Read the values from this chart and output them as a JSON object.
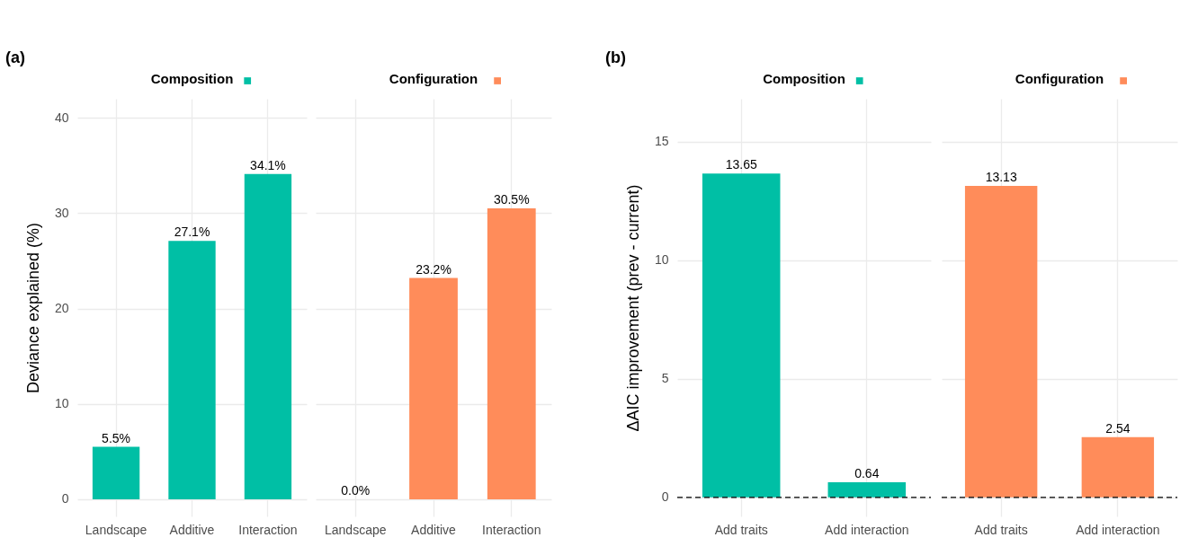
{
  "chart_data": [
    {
      "type": "bar",
      "title": "Composition",
      "annotations": [
        "(a)"
      ],
      "ylabel": "Deviance explained (%)",
      "categories": [
        "Landscape",
        "Additive",
        "Interaction"
      ],
      "series": [
        {
          "color": "#00bfa5",
          "values": [
            5.5,
            27.1,
            34.1
          ]
        }
      ],
      "value_labels": [
        "5.5%",
        "27.1%",
        "34.1%"
      ],
      "ylim": [
        -1.8,
        42
      ],
      "yticks": [
        0,
        10,
        20,
        30,
        40
      ],
      "grid": true
    },
    {
      "type": "bar",
      "title": "Configuration",
      "categories": [
        "Landscape",
        "Additive",
        "Interaction"
      ],
      "series": [
        {
          "color": "#ff8c5a",
          "values": [
            0.0,
            23.2,
            30.5
          ]
        }
      ],
      "value_labels": [
        "0.0%",
        "23.2%",
        "30.5%"
      ],
      "ylim": [
        -1.8,
        42
      ],
      "yticks": [
        0,
        10,
        20,
        30,
        40
      ],
      "grid": true,
      "tick_labels": "x"
    },
    {
      "type": "bar",
      "title": "Composition",
      "annotations": [
        "(b)"
      ],
      "ylabel": "ΔAIC improvement (prev - current)",
      "categories": [
        "Add traits",
        "Add interaction"
      ],
      "series": [
        {
          "color": "#00bfa5",
          "values": [
            13.65,
            0.64
          ]
        }
      ],
      "data_labels": true,
      "ylim": [
        -0.8,
        16.8
      ],
      "yticks": [
        0,
        5,
        10,
        15
      ],
      "grid": true,
      "ref_lines": [
        {
          "axis": "y",
          "value": 0,
          "color": "#000000",
          "line_style": "dashed"
        }
      ]
    },
    {
      "type": "bar",
      "title": "Configuration",
      "categories": [
        "Add traits",
        "Add interaction"
      ],
      "series": [
        {
          "color": "#ff8c5a",
          "values": [
            13.13,
            2.54
          ]
        }
      ],
      "data_labels": true,
      "ylim": [
        -0.8,
        16.8
      ],
      "yticks": [
        0,
        5,
        10,
        15
      ],
      "grid": true,
      "tick_labels": "x",
      "ref_lines": [
        {
          "axis": "y",
          "value": 0,
          "color": "#000000",
          "line_style": "dashed"
        }
      ]
    }
  ]
}
